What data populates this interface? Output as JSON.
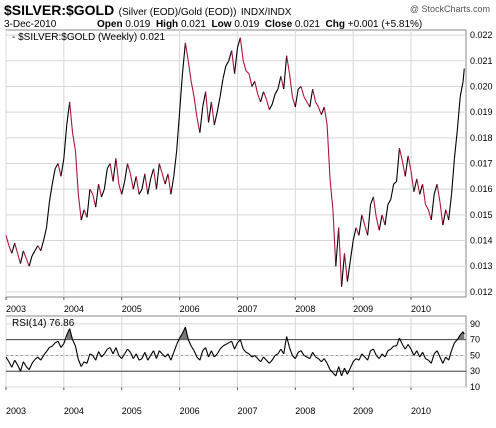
{
  "header": {
    "symbol": "$SILVER:$GOLD",
    "description": "(Silver (EOD)/Gold (EOD))",
    "exchange": "INDX/INDX",
    "watermark": "@ StockCharts.com",
    "date": "3-Dec-2010",
    "open_label": "Open",
    "open_value": "0.019",
    "high_label": "High",
    "high_value": "0.021",
    "low_label": "Low",
    "low_value": "0.019",
    "close_label": "Close",
    "close_value": "0.021",
    "chg_label": "Chg",
    "chg_value": "+0.001 (+5.81%)"
  },
  "colors": {
    "up": "#000000",
    "down": "#b0143c",
    "grid": "#d8d8d8",
    "rsi_fill": "#7a7a7a"
  },
  "chart_data": [
    {
      "type": "line",
      "legend": "- $SILVER:$GOLD (Weekly) 0.021",
      "ylim": [
        0.0118,
        0.0222
      ],
      "xlim": [
        2003.0,
        2010.95
      ],
      "x_ticks": [
        "2003",
        "2004",
        "2005",
        "2006",
        "2007",
        "2008",
        "2009",
        "2010"
      ],
      "y_ticks": [
        "0.022",
        "0.021",
        "0.020",
        "0.019",
        "0.018",
        "0.017",
        "0.016",
        "0.015",
        "0.014",
        "0.013",
        "0.012"
      ],
      "y_tick_values": [
        0.022,
        0.021,
        0.02,
        0.019,
        0.018,
        0.017,
        0.016,
        0.015,
        0.014,
        0.013,
        0.012
      ],
      "series": [
        {
          "x": [
            2003.0,
            2003.05,
            2003.1,
            2003.15,
            2003.2,
            2003.25,
            2003.3,
            2003.35,
            2003.4,
            2003.45,
            2003.5,
            2003.55,
            2003.6,
            2003.65,
            2003.7,
            2003.75,
            2003.8,
            2003.85,
            2003.9,
            2003.95,
            2004.0,
            2004.05,
            2004.1,
            2004.15,
            2004.2,
            2004.25,
            2004.3,
            2004.35,
            2004.4,
            2004.45,
            2004.5,
            2004.55,
            2004.6,
            2004.65,
            2004.7,
            2004.75,
            2004.8,
            2004.85,
            2004.9,
            2004.95,
            2005.0,
            2005.05,
            2005.1,
            2005.15,
            2005.2,
            2005.25,
            2005.3,
            2005.35,
            2005.4,
            2005.45,
            2005.5,
            2005.55,
            2005.6,
            2005.65,
            2005.7,
            2005.75,
            2005.8,
            2005.85,
            2005.9,
            2005.95,
            2006.0,
            2006.05,
            2006.1,
            2006.15,
            2006.2,
            2006.25,
            2006.3,
            2006.35,
            2006.4,
            2006.45,
            2006.5,
            2006.55,
            2006.6,
            2006.65,
            2006.7,
            2006.75,
            2006.8,
            2006.85,
            2006.9,
            2006.95,
            2007.0,
            2007.05,
            2007.1,
            2007.15,
            2007.2,
            2007.25,
            2007.3,
            2007.35,
            2007.4,
            2007.45,
            2007.5,
            2007.55,
            2007.6,
            2007.65,
            2007.7,
            2007.75,
            2007.8,
            2007.85,
            2007.9,
            2007.95,
            2008.0,
            2008.05,
            2008.1,
            2008.15,
            2008.2,
            2008.25,
            2008.3,
            2008.35,
            2008.4,
            2008.45,
            2008.5,
            2008.55,
            2008.6,
            2008.65,
            2008.7,
            2008.75,
            2008.8,
            2008.85,
            2008.9,
            2008.95,
            2009.0,
            2009.05,
            2009.1,
            2009.15,
            2009.2,
            2009.25,
            2009.3,
            2009.35,
            2009.4,
            2009.45,
            2009.5,
            2009.55,
            2009.6,
            2009.65,
            2009.7,
            2009.75,
            2009.8,
            2009.85,
            2009.9,
            2009.95,
            2010.0,
            2010.05,
            2010.1,
            2010.15,
            2010.2,
            2010.25,
            2010.3,
            2010.35,
            2010.4,
            2010.45,
            2010.5,
            2010.55,
            2010.6,
            2010.65,
            2010.7,
            2010.75,
            2010.8,
            2010.85,
            2010.9,
            2010.92
          ],
          "y": [
            0.0142,
            0.0138,
            0.0135,
            0.0139,
            0.0135,
            0.0131,
            0.0136,
            0.0133,
            0.013,
            0.0134,
            0.0136,
            0.0138,
            0.0136,
            0.014,
            0.0145,
            0.0155,
            0.0162,
            0.0168,
            0.017,
            0.0165,
            0.0172,
            0.0185,
            0.0194,
            0.0182,
            0.0175,
            0.0158,
            0.0148,
            0.0152,
            0.0149,
            0.016,
            0.0158,
            0.0153,
            0.0162,
            0.0157,
            0.016,
            0.0168,
            0.017,
            0.0163,
            0.0172,
            0.0162,
            0.0158,
            0.0163,
            0.017,
            0.0166,
            0.016,
            0.0165,
            0.0158,
            0.016,
            0.0166,
            0.0158,
            0.0164,
            0.0168,
            0.016,
            0.017,
            0.0166,
            0.0162,
            0.0166,
            0.0158,
            0.0165,
            0.0175,
            0.019,
            0.0205,
            0.0217,
            0.021,
            0.0202,
            0.0196,
            0.0188,
            0.0182,
            0.0192,
            0.0198,
            0.0186,
            0.0194,
            0.0185,
            0.019,
            0.0196,
            0.0203,
            0.0208,
            0.021,
            0.0214,
            0.0205,
            0.0215,
            0.0219,
            0.021,
            0.0206,
            0.0205,
            0.02,
            0.0202,
            0.0197,
            0.0194,
            0.0198,
            0.0195,
            0.0191,
            0.0193,
            0.0197,
            0.0199,
            0.0204,
            0.0199,
            0.0212,
            0.0205,
            0.0196,
            0.0192,
            0.0199,
            0.02,
            0.0196,
            0.0194,
            0.0192,
            0.0199,
            0.0194,
            0.0192,
            0.0189,
            0.0192,
            0.0185,
            0.0164,
            0.0152,
            0.013,
            0.0145,
            0.0122,
            0.0135,
            0.0124,
            0.0132,
            0.014,
            0.0145,
            0.0142,
            0.015,
            0.0146,
            0.0142,
            0.0154,
            0.0157,
            0.0149,
            0.0144,
            0.015,
            0.0146,
            0.0154,
            0.0156,
            0.0162,
            0.0163,
            0.0176,
            0.0171,
            0.0165,
            0.0173,
            0.0167,
            0.0159,
            0.0164,
            0.0158,
            0.0162,
            0.0154,
            0.0152,
            0.0148,
            0.0158,
            0.0162,
            0.0155,
            0.0146,
            0.0152,
            0.0148,
            0.0158,
            0.0172,
            0.0183,
            0.0196,
            0.0202,
            0.0207
          ]
        }
      ]
    },
    {
      "type": "line",
      "legend": "RSI(14) 76.86",
      "ylim": [
        10,
        100
      ],
      "xlim": [
        2003.0,
        2010.95
      ],
      "x_ticks": [
        "2003",
        "2004",
        "2005",
        "2006",
        "2007",
        "2008",
        "2009",
        "2010"
      ],
      "y_ticks": [
        "90",
        "70",
        "50",
        "30",
        "10"
      ],
      "y_tick_values": [
        90,
        70,
        50,
        30,
        10
      ],
      "reference_lines": [
        70,
        30
      ],
      "series": [
        {
          "x": [
            2003.0,
            2003.05,
            2003.1,
            2003.15,
            2003.2,
            2003.25,
            2003.3,
            2003.35,
            2003.4,
            2003.45,
            2003.5,
            2003.55,
            2003.6,
            2003.65,
            2003.7,
            2003.75,
            2003.8,
            2003.85,
            2003.9,
            2003.95,
            2004.0,
            2004.05,
            2004.1,
            2004.15,
            2004.2,
            2004.25,
            2004.3,
            2004.35,
            2004.4,
            2004.45,
            2004.5,
            2004.55,
            2004.6,
            2004.65,
            2004.7,
            2004.75,
            2004.8,
            2004.85,
            2004.9,
            2004.95,
            2005.0,
            2005.05,
            2005.1,
            2005.15,
            2005.2,
            2005.25,
            2005.3,
            2005.35,
            2005.4,
            2005.45,
            2005.5,
            2005.55,
            2005.6,
            2005.65,
            2005.7,
            2005.75,
            2005.8,
            2005.85,
            2005.9,
            2005.95,
            2006.0,
            2006.05,
            2006.1,
            2006.15,
            2006.2,
            2006.25,
            2006.3,
            2006.35,
            2006.4,
            2006.45,
            2006.5,
            2006.55,
            2006.6,
            2006.65,
            2006.7,
            2006.75,
            2006.8,
            2006.85,
            2006.9,
            2006.95,
            2007.0,
            2007.05,
            2007.1,
            2007.15,
            2007.2,
            2007.25,
            2007.3,
            2007.35,
            2007.4,
            2007.45,
            2007.5,
            2007.55,
            2007.6,
            2007.65,
            2007.7,
            2007.75,
            2007.8,
            2007.85,
            2007.9,
            2007.95,
            2008.0,
            2008.05,
            2008.1,
            2008.15,
            2008.2,
            2008.25,
            2008.3,
            2008.35,
            2008.4,
            2008.45,
            2008.5,
            2008.55,
            2008.6,
            2008.65,
            2008.7,
            2008.75,
            2008.8,
            2008.85,
            2008.9,
            2008.95,
            2009.0,
            2009.05,
            2009.1,
            2009.15,
            2009.2,
            2009.25,
            2009.3,
            2009.35,
            2009.4,
            2009.45,
            2009.5,
            2009.55,
            2009.6,
            2009.65,
            2009.7,
            2009.75,
            2009.8,
            2009.85,
            2009.9,
            2009.95,
            2010.0,
            2010.05,
            2010.1,
            2010.15,
            2010.2,
            2010.25,
            2010.3,
            2010.35,
            2010.4,
            2010.45,
            2010.5,
            2010.55,
            2010.6,
            2010.65,
            2010.7,
            2010.75,
            2010.8,
            2010.85,
            2010.9,
            2010.92
          ],
          "y": [
            48,
            42,
            35,
            44,
            38,
            30,
            42,
            36,
            32,
            40,
            45,
            48,
            44,
            50,
            55,
            60,
            62,
            66,
            68,
            60,
            65,
            76,
            84,
            70,
            62,
            45,
            36,
            42,
            40,
            52,
            50,
            44,
            55,
            48,
            52,
            58,
            60,
            52,
            60,
            50,
            46,
            52,
            58,
            54,
            46,
            52,
            44,
            46,
            54,
            44,
            50,
            56,
            46,
            56,
            52,
            48,
            52,
            44,
            54,
            64,
            72,
            78,
            86,
            70,
            62,
            56,
            48,
            44,
            56,
            60,
            48,
            56,
            48,
            52,
            58,
            62,
            64,
            66,
            68,
            58,
            66,
            70,
            58,
            54,
            52,
            48,
            50,
            46,
            42,
            48,
            44,
            40,
            44,
            50,
            52,
            58,
            52,
            74,
            60,
            50,
            46,
            54,
            56,
            50,
            48,
            46,
            54,
            48,
            46,
            42,
            46,
            40,
            32,
            28,
            24,
            36,
            24,
            34,
            26,
            34,
            42,
            46,
            44,
            52,
            48,
            44,
            56,
            58,
            50,
            46,
            52,
            48,
            56,
            58,
            62,
            62,
            72,
            64,
            58,
            64,
            58,
            50,
            56,
            48,
            54,
            46,
            44,
            40,
            52,
            56,
            48,
            40,
            48,
            44,
            56,
            66,
            70,
            76,
            80,
            77
          ]
        }
      ]
    }
  ]
}
